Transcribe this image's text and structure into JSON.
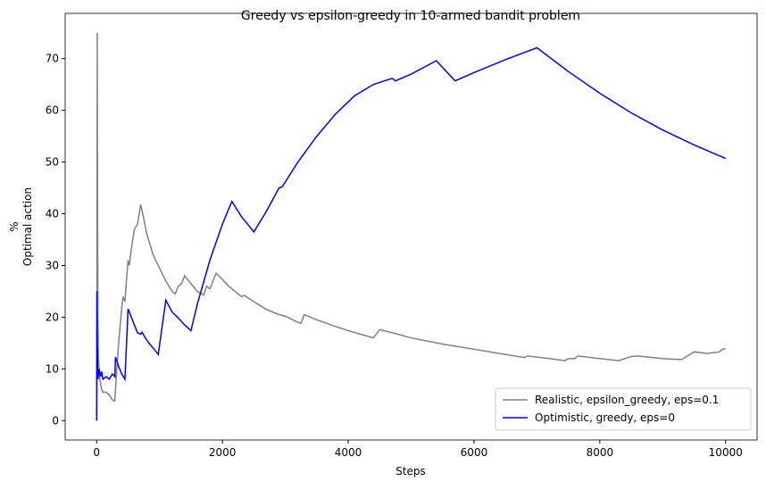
{
  "chart_data": {
    "type": "line",
    "title": "Greedy vs epsilon-greedy in 10-armed bandit problem",
    "xlabel": "Steps",
    "ylabel": [
      "%",
      "Optimal action"
    ],
    "xlim": [
      -500,
      10500
    ],
    "ylim": [
      -3.75,
      78.75
    ],
    "xticks": [
      0,
      2000,
      4000,
      6000,
      8000,
      10000
    ],
    "yticks": [
      0,
      10,
      20,
      30,
      40,
      50,
      60,
      70
    ],
    "legend": "lower right",
    "series": [
      {
        "name": "Realistic, epsilon_greedy, eps=0.1",
        "color": "#808080",
        "x": [
          1,
          5,
          10,
          15,
          20,
          30,
          50,
          80,
          100,
          150,
          200,
          250,
          290,
          310,
          350,
          400,
          420,
          450,
          480,
          500,
          520,
          550,
          600,
          650,
          700,
          750,
          800,
          900,
          1000,
          1100,
          1200,
          1250,
          1300,
          1350,
          1400,
          1500,
          1600,
          1700,
          1750,
          1800,
          1900,
          2000,
          2100,
          2200,
          2300,
          2350,
          2500,
          2700,
          2900,
          3000,
          3200,
          3250,
          3300,
          3500,
          3800,
          4000,
          4200,
          4400,
          4500,
          4700,
          5000,
          5500,
          6000,
          6500,
          6800,
          6850,
          7200,
          7450,
          7500,
          7600,
          7650,
          8000,
          8300,
          8400,
          8500,
          8600,
          9000,
          9300,
          9500,
          9700,
          9900,
          9950,
          10000
        ],
        "values": [
          0,
          25,
          75,
          40,
          20,
          12,
          8,
          6,
          5.5,
          5.5,
          5,
          4,
          3.8,
          8,
          15,
          22,
          24,
          23,
          28,
          31,
          30,
          33,
          37,
          38,
          41.8,
          39,
          36,
          32,
          29.5,
          27,
          25,
          24.5,
          26,
          26.5,
          28,
          26.5,
          25,
          24.3,
          26,
          25.5,
          28.5,
          27.3,
          26,
          25,
          24,
          24.2,
          23,
          21.5,
          20.5,
          20.2,
          19,
          18.8,
          20.5,
          19.5,
          18.2,
          17.4,
          16.7,
          16,
          17.6,
          17,
          16,
          14.8,
          13.8,
          12.8,
          12.2,
          12.5,
          12,
          11.6,
          12,
          12,
          12.5,
          12,
          11.6,
          12,
          12.4,
          12.5,
          12,
          11.8,
          13.3,
          13,
          13.3,
          13.8,
          13.9
        ]
      },
      {
        "name": "Optimistic, greedy, eps=0",
        "color": "#0000ff",
        "x": [
          1,
          5,
          10,
          20,
          40,
          60,
          80,
          100,
          150,
          200,
          250,
          290,
          300,
          350,
          400,
          450,
          500,
          600,
          650,
          700,
          720,
          800,
          900,
          980,
          1100,
          1200,
          1300,
          1400,
          1500,
          1600,
          1800,
          2000,
          2150,
          2300,
          2500,
          2700,
          2900,
          2950,
          3200,
          3500,
          3800,
          4100,
          4400,
          4700,
          4750,
          5000,
          5400,
          5700,
          6000,
          6500,
          7000,
          7500,
          8000,
          8500,
          9000,
          9500,
          10000
        ],
        "values": [
          0,
          25,
          15,
          8,
          10,
          8.5,
          9.5,
          8,
          8.5,
          8,
          9,
          8.5,
          12.3,
          10.5,
          9,
          8,
          21.6,
          18.5,
          17,
          16.7,
          17.1,
          15.5,
          14,
          12.8,
          23.3,
          21,
          19.8,
          18.5,
          17.4,
          22.5,
          31,
          38,
          42.4,
          39.5,
          36.5,
          40.5,
          45,
          45.2,
          50,
          55,
          59.3,
          62.8,
          65,
          66.2,
          65.7,
          67,
          69.6,
          65.7,
          67.3,
          69.8,
          72.1,
          67.5,
          63.3,
          59.5,
          56.2,
          53.3,
          50.7
        ]
      }
    ]
  }
}
